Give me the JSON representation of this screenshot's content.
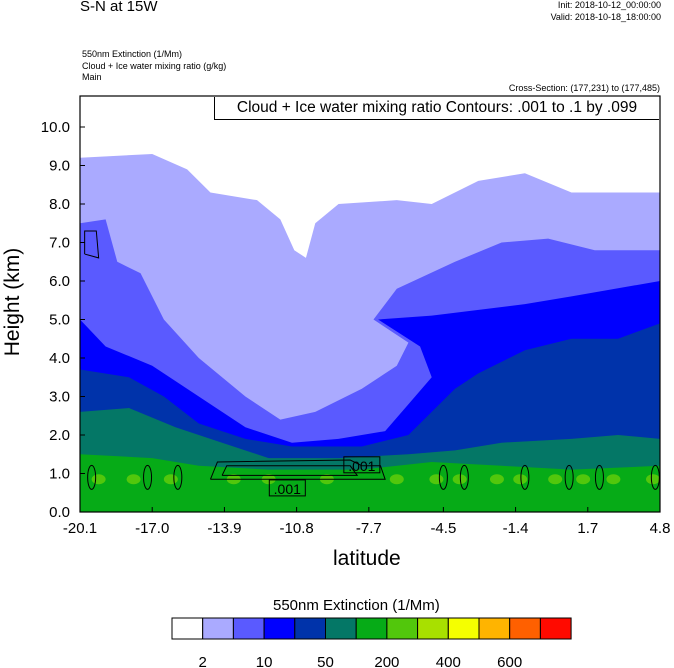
{
  "header": {
    "main_title": "S-N at 15W",
    "init": "Init: 2018-10-12_00:00:00",
    "valid": "Valid: 2018-10-18_18:00:00",
    "fields": [
      "550nm Extinction   (1/Mm)",
      "Cloud + Ice water mixing ratio   (g/kg)",
      "Main"
    ],
    "cross_section": "Cross-Section: (177,231) to (177,485)"
  },
  "chart_data": {
    "type": "contour",
    "title": "Cloud + Ice water mixing ratio Contours: .001 to .1 by .099",
    "xlabel": "latitude",
    "ylabel": "Height (km)",
    "xlim": [
      -20.1,
      4.8
    ],
    "ylim": [
      0,
      10.8
    ],
    "xticks": [
      "-20.1",
      "-17.0",
      "-13.9",
      "-10.8",
      "-7.7",
      "-4.5",
      "-1.4",
      "1.7",
      "4.8"
    ],
    "xtick_values": [
      -20.1,
      -17.0,
      -13.9,
      -10.8,
      -7.7,
      -4.5,
      -1.4,
      1.7,
      4.8
    ],
    "yticks": [
      "0.0",
      "1.0",
      "2.0",
      "3.0",
      "4.0",
      "5.0",
      "6.0",
      "7.0",
      "8.0",
      "9.0",
      "10.0"
    ],
    "colorbar": {
      "title": "550nm Extinction  (1/Mm)",
      "colors": [
        "#ffffff",
        "#aaaaff",
        "#5a5aff",
        "#0000ff",
        "#0033aa",
        "#047766",
        "#06ab17",
        "#52c70c",
        "#a8e000",
        "#f5ff00",
        "#ffb400",
        "#ff6000",
        "#ff0a00"
      ],
      "labels": [
        "2",
        "10",
        "50",
        "200",
        "400",
        "600"
      ]
    },
    "fill_bands": [
      {
        "color": "#aaaaff",
        "top": [
          [
            -20.1,
            9.2
          ],
          [
            -17,
            9.3
          ],
          [
            -15.5,
            8.9
          ],
          [
            -14.5,
            8.3
          ],
          [
            -12.5,
            8.1
          ],
          [
            -11.5,
            7.6
          ],
          [
            -10.9,
            6.8
          ],
          [
            -10.4,
            6.6
          ],
          [
            -10,
            7.5
          ],
          [
            -9,
            8.0
          ],
          [
            -6.5,
            8.1
          ],
          [
            -5,
            8.0
          ],
          [
            -3,
            8.6
          ],
          [
            -1,
            8.8
          ],
          [
            1,
            8.3
          ],
          [
            4.8,
            8.3
          ]
        ]
      },
      {
        "color": "#5a5aff",
        "top": [
          [
            -20.1,
            7.5
          ],
          [
            -19,
            7.6
          ],
          [
            -18.5,
            6.5
          ],
          [
            -17.5,
            6.2
          ],
          [
            -16.5,
            5.0
          ],
          [
            -15,
            4.0
          ],
          [
            -14,
            3.5
          ],
          [
            -13,
            3.0
          ],
          [
            -11.5,
            2.4
          ],
          [
            -10,
            2.6
          ],
          [
            -8,
            3.2
          ],
          [
            -6.5,
            3.8
          ],
          [
            -6,
            4.4
          ],
          [
            -7.5,
            5.0
          ],
          [
            -6.5,
            5.8
          ],
          [
            -4,
            6.5
          ],
          [
            -2,
            7.0
          ],
          [
            0,
            7.1
          ],
          [
            2,
            6.8
          ],
          [
            4.8,
            6.8
          ]
        ]
      },
      {
        "color": "#0000ff",
        "top": [
          [
            -20.1,
            5.0
          ],
          [
            -19,
            4.3
          ],
          [
            -17,
            3.8
          ],
          [
            -15,
            3.0
          ],
          [
            -13,
            2.2
          ],
          [
            -11,
            1.8
          ],
          [
            -9,
            1.9
          ],
          [
            -7,
            2.1
          ],
          [
            -6,
            2.8
          ],
          [
            -5,
            3.5
          ],
          [
            -5.5,
            4.3
          ],
          [
            -7.3,
            5.0
          ],
          [
            -5,
            5.1
          ],
          [
            -1,
            5.4
          ],
          [
            1,
            5.6
          ],
          [
            4.8,
            6.0
          ]
        ]
      },
      {
        "color": "#0033aa",
        "top": [
          [
            -20.1,
            3.7
          ],
          [
            -18,
            3.5
          ],
          [
            -16.5,
            3.0
          ],
          [
            -15,
            2.3
          ],
          [
            -13,
            1.9
          ],
          [
            -11,
            1.7
          ],
          [
            -8,
            1.7
          ],
          [
            -6,
            2.0
          ],
          [
            -4,
            3.2
          ],
          [
            -3,
            3.6
          ],
          [
            -1,
            4.2
          ],
          [
            1,
            4.5
          ],
          [
            3,
            4.5
          ],
          [
            4.8,
            4.9
          ]
        ]
      },
      {
        "color": "#047766",
        "top": [
          [
            -20.1,
            2.6
          ],
          [
            -18,
            2.7
          ],
          [
            -16,
            2.2
          ],
          [
            -14,
            1.8
          ],
          [
            -12,
            1.4
          ],
          [
            -9,
            1.4
          ],
          [
            -6,
            1.5
          ],
          [
            -4,
            1.6
          ],
          [
            -2,
            1.8
          ],
          [
            1,
            1.9
          ],
          [
            3,
            2.0
          ],
          [
            4.8,
            1.9
          ]
        ]
      },
      {
        "color": "#06ab17",
        "top": [
          [
            -20.1,
            1.5
          ],
          [
            -17,
            1.4
          ],
          [
            -15,
            1.2
          ],
          [
            -12,
            1.1
          ],
          [
            -8,
            1.1
          ],
          [
            -5,
            1.3
          ],
          [
            -2,
            1.2
          ],
          [
            1,
            1.1
          ],
          [
            4.8,
            1.2
          ]
        ]
      }
    ],
    "contours": [
      {
        "level": ".001",
        "points": [
          [
            -14.5,
            0.85
          ],
          [
            -14.2,
            1.3
          ],
          [
            -8.5,
            1.35
          ],
          [
            -8,
            1.2
          ],
          [
            -7.2,
            1.2
          ],
          [
            -7,
            0.85
          ],
          [
            -14.5,
            0.85
          ]
        ]
      },
      {
        "level": ".001",
        "points": [
          [
            -14,
            0.95
          ],
          [
            -13.8,
            1.2
          ],
          [
            -8.5,
            1.2
          ],
          [
            -8.2,
            0.95
          ],
          [
            -14,
            0.95
          ]
        ]
      },
      {
        "level": ".001",
        "points": [
          [
            -19.9,
            6.7
          ],
          [
            -19.9,
            7.3
          ],
          [
            -19.4,
            7.3
          ],
          [
            -19.3,
            6.6
          ],
          [
            -19.9,
            6.7
          ]
        ]
      }
    ],
    "contour_labels": [
      {
        "text": ".001",
        "lat": -8.0,
        "h": 1.2
      },
      {
        "text": ".001",
        "lat": -11.2,
        "h": 0.6
      }
    ]
  }
}
